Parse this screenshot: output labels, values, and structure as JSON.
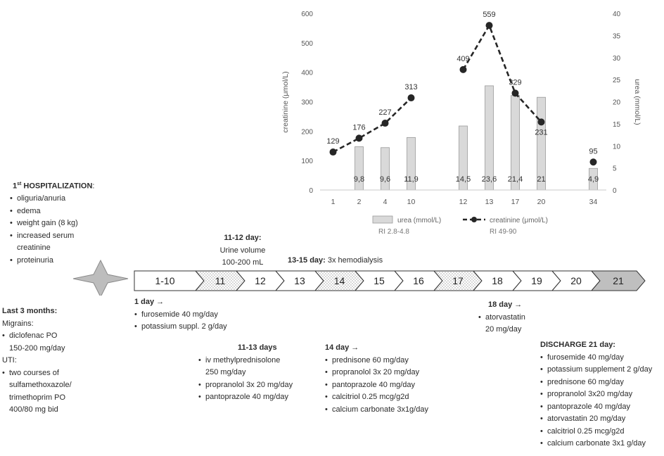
{
  "chart_data": {
    "type": "bar",
    "categories": [
      "1",
      "2",
      "4",
      "10",
      "",
      "12",
      "13",
      "17",
      "20",
      "",
      "34"
    ],
    "y_left": {
      "label": "creatinine (μmol/L)",
      "ticks": [
        0,
        100,
        200,
        300,
        400,
        500,
        600
      ],
      "range": [
        0,
        600
      ]
    },
    "y_right": {
      "label": "urea (mmol/L)",
      "ticks": [
        0,
        5,
        10,
        15,
        20,
        25,
        30,
        35,
        40
      ],
      "range": [
        0,
        40
      ]
    },
    "series": [
      {
        "name": "urea (mmol/L)",
        "ri": "RI 2.8-4.8",
        "type": "bar",
        "axis": "right",
        "values": [
          null,
          9.8,
          9.6,
          11.9,
          null,
          14.5,
          23.6,
          21.4,
          21,
          null,
          4.9
        ],
        "labels": [
          "",
          "9,8",
          "9,6",
          "11,9",
          "",
          "14,5",
          "23,6",
          "21,4",
          "21",
          "",
          "4,9"
        ],
        "color": "#d9d9d9"
      },
      {
        "name": "creatinine (μmol/L)",
        "ri": "RI 49-90",
        "type": "line",
        "axis": "left",
        "values": [
          129,
          176,
          227,
          313,
          null,
          409,
          559,
          329,
          231,
          null,
          95
        ],
        "labels": [
          "129",
          "176",
          "227",
          "313",
          "",
          "409",
          "559",
          "329",
          "231",
          "",
          "95"
        ],
        "color": "#262626"
      }
    ],
    "grid": false,
    "legend": "bottom"
  },
  "hospitalization": {
    "title_main": "1",
    "title_sup": "st",
    "title_rest": " HOSPITALIZATION",
    "title_colon": ":",
    "items": [
      "oliguria/anuria",
      "edema",
      "weight gain (8 kg)",
      "increased serum",
      "creatinine",
      "proteinuria"
    ]
  },
  "timeline": {
    "cells": [
      "1-10",
      "11",
      "12",
      "13",
      "14",
      "15",
      "16",
      "17",
      "18",
      "19",
      "20",
      "21"
    ],
    "colors": {
      "hemodialysis": "#e3e3e3",
      "discharge": "#bfbfbf"
    }
  },
  "day11_12": {
    "title": "11-12 day:",
    "line1": "Urine volume",
    "line2": "100-200 mL"
  },
  "day13_15": {
    "title": "13-15 day:",
    "text": " 3x hemodialysis"
  },
  "day1": {
    "title": "1 day →",
    "items": [
      "furosemide 40 mg/day",
      "potassium suppl. 2 g/day"
    ]
  },
  "day18": {
    "title": "18 day →",
    "items": [
      "atorvastatin",
      "20 mg/day"
    ]
  },
  "last3": {
    "title": "Last 3 months:",
    "migrains": "Migrains:",
    "mig_items": [
      "diclofenac PO",
      "150-200 mg/day"
    ],
    "uti": "UTI:",
    "uti_items": [
      "two courses of",
      "sulfamethoxazole/",
      "trimethoprim PO",
      "400/80 mg bid"
    ]
  },
  "day11_13": {
    "title": "11-13 days",
    "items": [
      "iv methylprednisolone",
      "250 mg/day",
      "propranolol 3x 20 mg/day",
      "pantoprazole 40 mg/day"
    ]
  },
  "day14": {
    "title": "14 day →",
    "items": [
      "prednisone 60 mg/day",
      "propranolol 3x 20 mg/day",
      "pantoprazole 40 mg/day",
      "calcitriol 0.25 mcg/g2d",
      "calcium carbonate 3x1g/day"
    ]
  },
  "discharge": {
    "title": "DISCHARGE 21 day:",
    "items": [
      "furosemide 40 mg/day",
      "potassium supplement 2 g/day",
      "prednisone 60 mg/day",
      "propranolol 3x20 mg/day",
      "pantoprazole 40 mg/day",
      "atorvastatin 20 mg/day",
      "calcitriol 0.25 mcg/g2d",
      "calcium carbonate 3x1 g/day"
    ]
  }
}
